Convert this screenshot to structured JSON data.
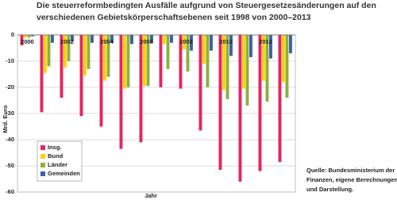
{
  "chart_data": {
    "type": "bar",
    "title": [
      "Die steuerreformbedingten Ausfälle aufgrund von Steuergesetzesänderungen auf den",
      "verschiedenen Gebietskörperschaftsebenen seit 1998 von 2000–2013"
    ],
    "x_label": "Jahr",
    "y_label": "Mrd. Euro",
    "categories": [
      "2000",
      null,
      "2002",
      null,
      "2004",
      null,
      "2006",
      null,
      "2008",
      null,
      "2010",
      null,
      "2012",
      null
    ],
    "series": [
      {
        "name": "Insg.",
        "color": "#e8235e",
        "values": [
          -4,
          -29.5,
          -24,
          -31,
          -35,
          -43.5,
          -41,
          -20,
          -20.5,
          -36.5,
          -51.5,
          -56,
          -52,
          -48.5
        ]
      },
      {
        "name": "Bund",
        "color": "#ffd200",
        "values": [
          -1,
          -14.5,
          -12.5,
          -15.5,
          -17.5,
          -20.5,
          -19.5,
          -3.5,
          -5.5,
          -11,
          -21,
          -20.5,
          -17.5,
          -18
        ]
      },
      {
        "name": "Länder",
        "color": "#8db03f",
        "values": [
          -1,
          -12,
          -10,
          -13,
          -16,
          -20,
          -19.5,
          -13,
          -14,
          -20,
          -24.5,
          -27,
          -25.5,
          -24
        ]
      },
      {
        "name": "Gemeinden",
        "color": "#3f5fa8",
        "values": [
          -0.5,
          -3,
          -2.5,
          -3,
          -3,
          -3.5,
          -3,
          -3,
          -6,
          -6,
          -8,
          -8.5,
          -9,
          -7
        ]
      }
    ],
    "ylim": [
      -60,
      0
    ],
    "yticks": [
      0,
      -10,
      -20,
      -30,
      -40,
      -50,
      -60
    ],
    "grid": true,
    "legend": "lower left",
    "source": [
      "Quelle: Bundesministerium der",
      "Finanzen, eigene Berechnungen",
      "und Darstellung."
    ]
  }
}
